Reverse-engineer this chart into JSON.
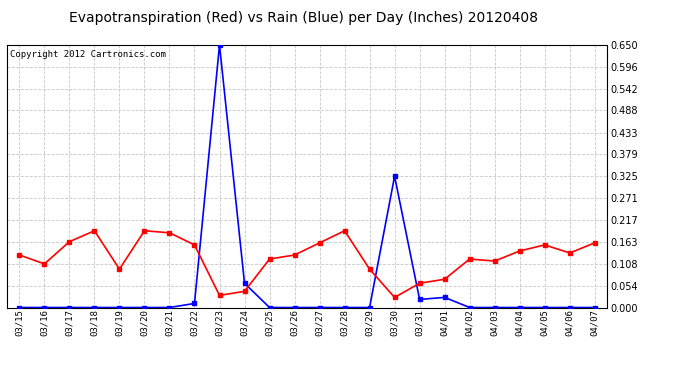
{
  "title": "Evapotranspiration (Red) vs Rain (Blue) per Day (Inches) 20120408",
  "copyright": "Copyright 2012 Cartronics.com",
  "x_labels": [
    "03/15",
    "03/16",
    "03/17",
    "03/18",
    "03/19",
    "03/20",
    "03/21",
    "03/22",
    "03/23",
    "03/24",
    "03/25",
    "03/26",
    "03/27",
    "03/28",
    "03/29",
    "03/30",
    "03/31",
    "04/01",
    "04/02",
    "04/03",
    "04/04",
    "04/05",
    "04/06",
    "04/07"
  ],
  "rain_blue": [
    0.0,
    0.0,
    0.0,
    0.0,
    0.0,
    0.0,
    0.0,
    0.01,
    0.65,
    0.06,
    0.0,
    0.0,
    0.0,
    0.0,
    0.0,
    0.325,
    0.02,
    0.025,
    0.0,
    0.0,
    0.0,
    0.0,
    0.0,
    0.0
  ],
  "evapo_red": [
    0.13,
    0.108,
    0.163,
    0.19,
    0.095,
    0.19,
    0.185,
    0.155,
    0.03,
    0.04,
    0.12,
    0.13,
    0.16,
    0.19,
    0.095,
    0.025,
    0.06,
    0.07,
    0.12,
    0.115,
    0.14,
    0.155,
    0.135,
    0.16
  ],
  "ylim": [
    0.0,
    0.65
  ],
  "yticks": [
    0.0,
    0.054,
    0.108,
    0.163,
    0.217,
    0.271,
    0.325,
    0.379,
    0.433,
    0.488,
    0.542,
    0.596,
    0.65
  ],
  "background_color": "#ffffff",
  "grid_color": "#c8c8c8",
  "blue_color": "#0000ff",
  "red_color": "#ff0000",
  "title_fontsize": 10,
  "copyright_fontsize": 6.5
}
